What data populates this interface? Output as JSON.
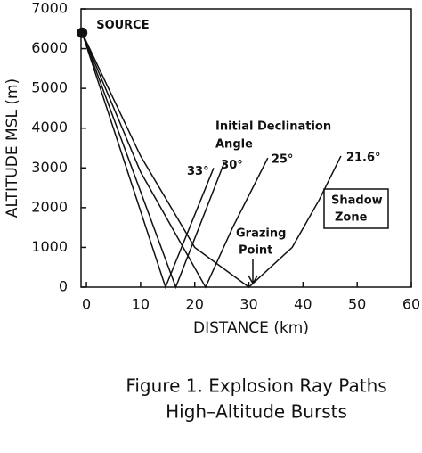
{
  "chart_data": {
    "type": "line",
    "x_label": "DISTANCE (km)",
    "y_label": "ALTITUDE MSL (m)",
    "xlim": [
      -1,
      60
    ],
    "ylim": [
      0,
      7000
    ],
    "xticks": [
      0,
      10,
      20,
      30,
      40,
      50,
      60
    ],
    "yticks": [
      0,
      1000,
      2000,
      3000,
      4000,
      5000,
      6000,
      7000
    ],
    "source": {
      "label": "SOURCE",
      "x": -0.8,
      "y": 6400
    },
    "legend_title": [
      "Initial Declination",
      "Angle"
    ],
    "series": [
      {
        "name": "33°",
        "color": "#111111",
        "x": [
          -0.8,
          14.6,
          23.5
        ],
        "values": [
          6400,
          0,
          3000
        ]
      },
      {
        "name": "30°",
        "color": "#111111",
        "x": [
          -0.8,
          16.5,
          25.5
        ],
        "values": [
          6400,
          0,
          3150
        ]
      },
      {
        "name": "25°",
        "color": "#111111",
        "x": [
          -0.8,
          10,
          22,
          27,
          33.5
        ],
        "values": [
          6400,
          2900,
          0,
          1500,
          3250
        ]
      },
      {
        "name": "21.6°",
        "color": "#111111",
        "x": [
          -0.8,
          10,
          20,
          30,
          38,
          43,
          47
        ],
        "values": [
          6400,
          3300,
          1000,
          0,
          1000,
          2200,
          3300
        ]
      }
    ],
    "annotations": [
      [
        "Grazing",
        "Point"
      ],
      [
        "Shadow",
        "Zone"
      ]
    ],
    "caption": [
      "Figure 1. Explosion Ray Paths",
      "High–Altitude Bursts"
    ]
  }
}
